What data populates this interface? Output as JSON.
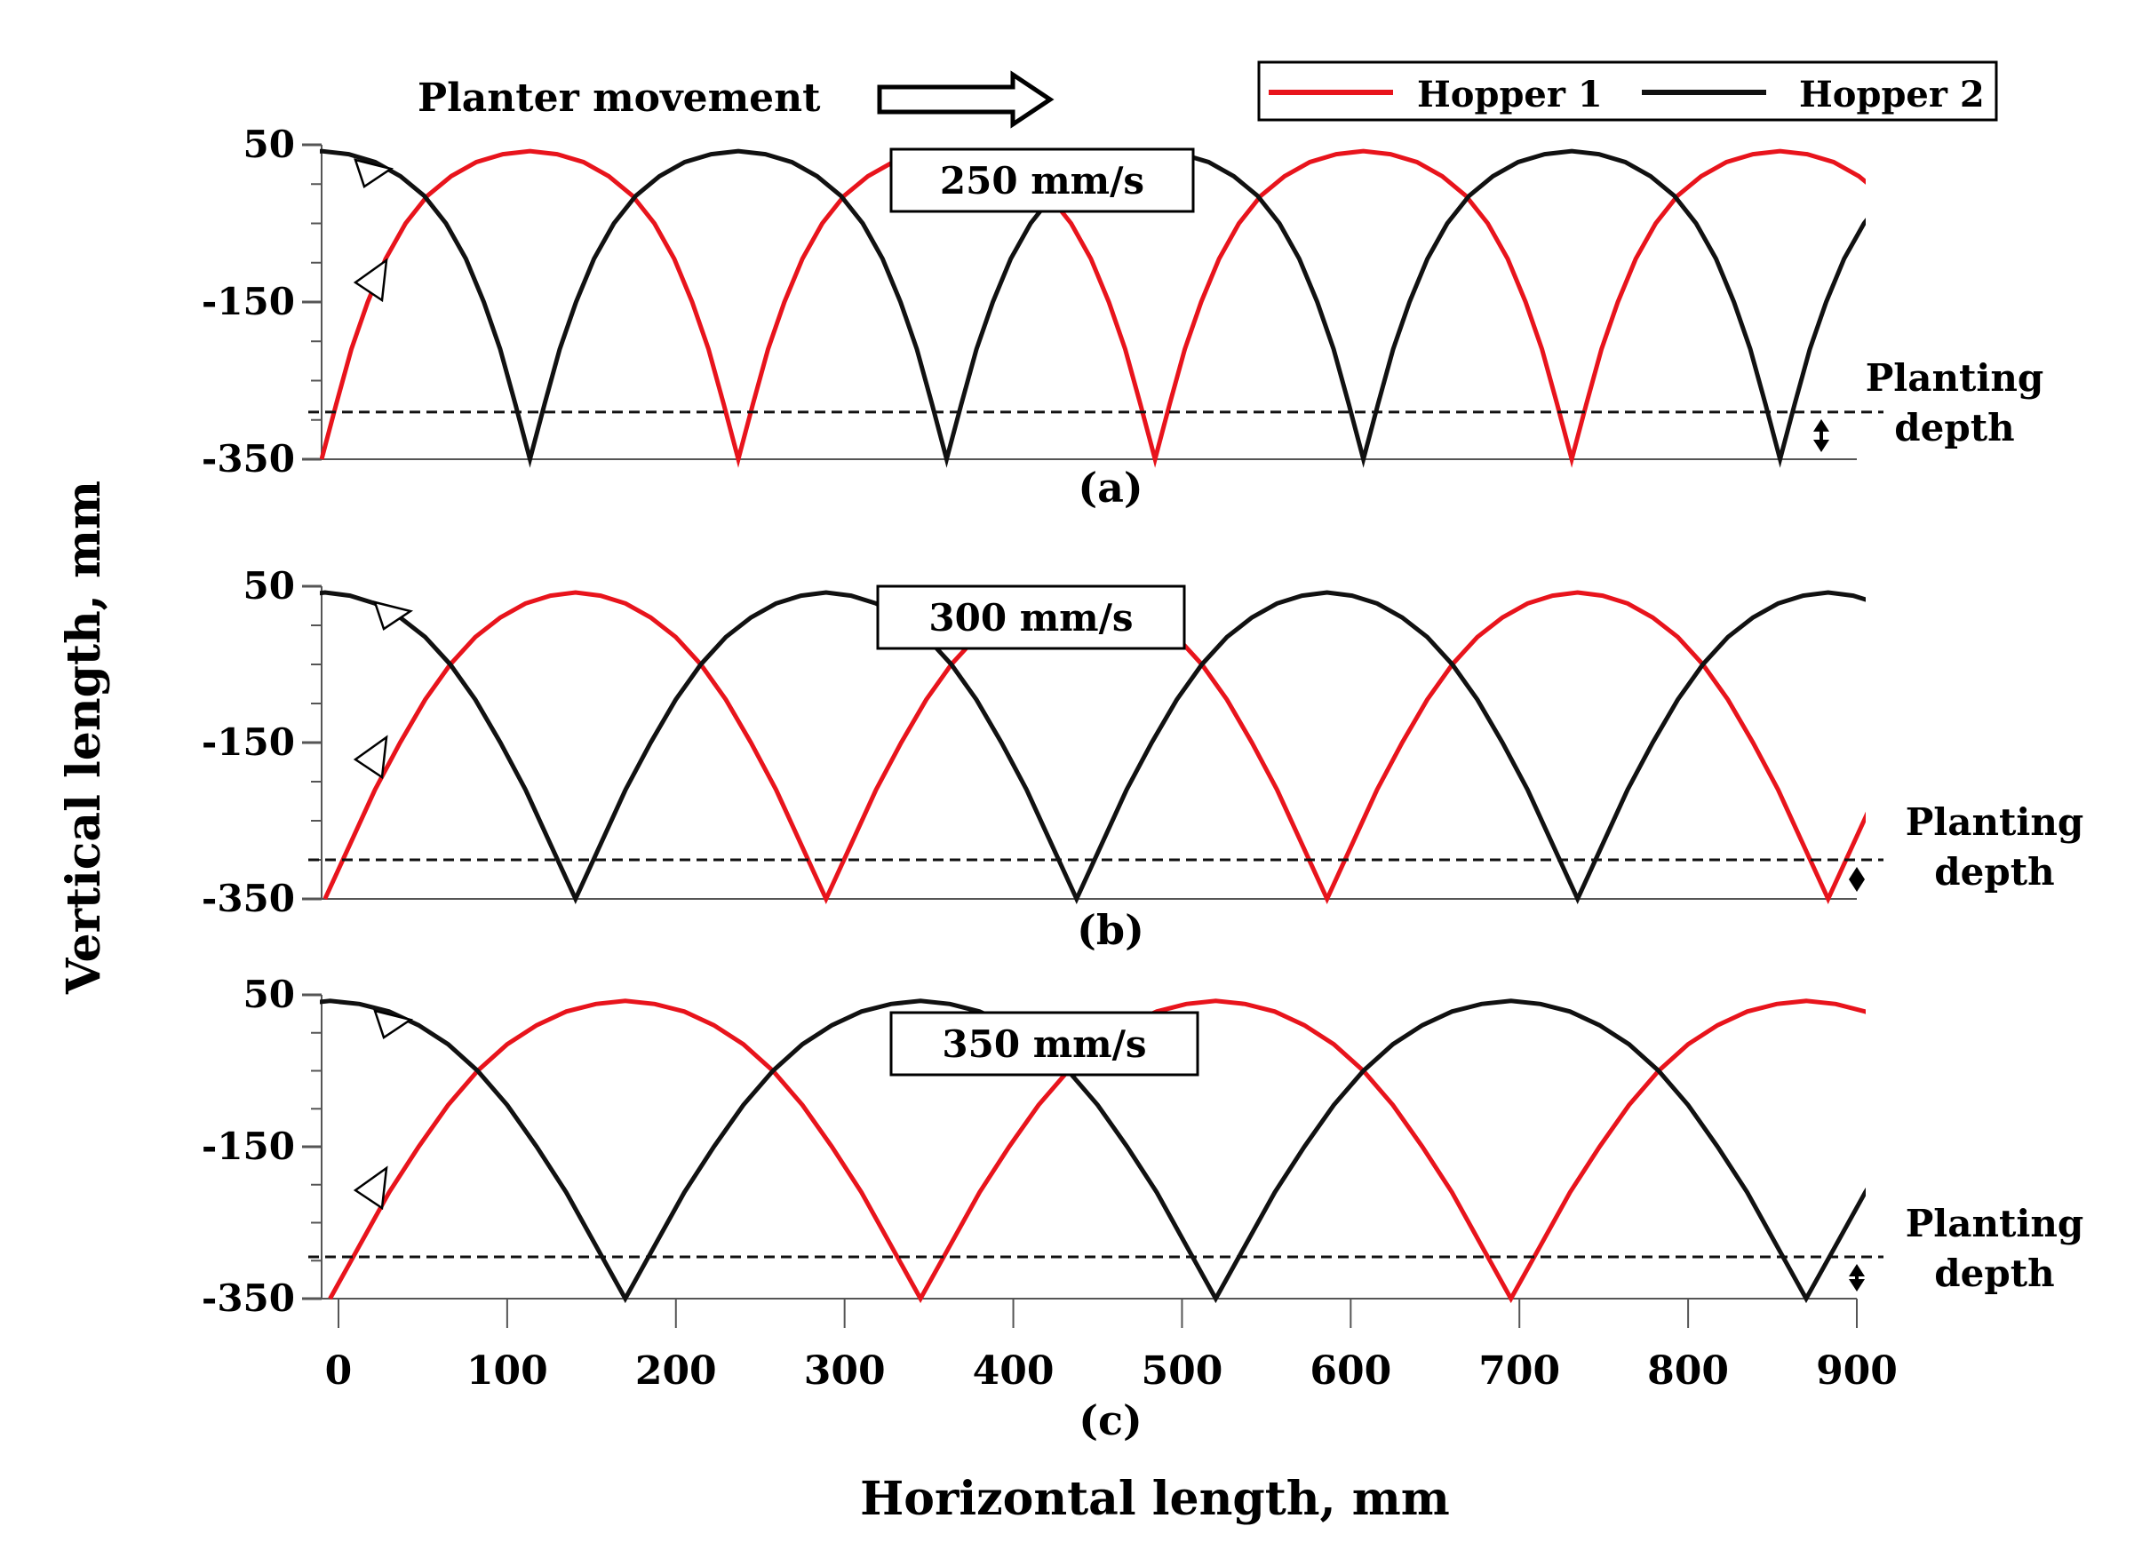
{
  "colors": {
    "hopper1": "#e8141c",
    "hopper2": "#111111",
    "axis": "#555555",
    "depth_line": "#111111"
  },
  "header": {
    "movement_label": "Planter movement",
    "movement_icon": "hollow-right-arrow"
  },
  "legend": {
    "items": [
      {
        "label": "Hopper 1",
        "color": "#e8141c"
      },
      {
        "label": "Hopper 2",
        "color": "#111111"
      }
    ]
  },
  "axes": {
    "ylabel": "Vertical length, mm",
    "xlabel": "Horizontal length, mm",
    "x_ticks": [
      "0",
      "100",
      "200",
      "300",
      "400",
      "500",
      "600",
      "700",
      "800",
      "900"
    ],
    "xlim": [
      -10,
      900
    ],
    "ylim": [
      -350,
      50
    ],
    "y_tick_labels": [
      "50",
      "-150",
      "-350"
    ]
  },
  "chart_data": [
    {
      "type": "line",
      "panel": "(a)",
      "speed_label": "250 mm/s",
      "xlim": [
        -10,
        900
      ],
      "ylim": [
        -350,
        50
      ],
      "depth_y": -290,
      "annotation": {
        "label_line1": "Planting",
        "label_line2": "depth"
      },
      "series": [
        {
          "name": "Hopper 1",
          "phase": 0.0,
          "x0": -10,
          "x1": 890,
          "arch_samples": [
            -350,
            -280,
            -210,
            -150,
            -95,
            -50,
            -15,
            10,
            28,
            38,
            42,
            38,
            28,
            10,
            -15,
            -50,
            -95,
            -150,
            -210,
            -280,
            -350
          ]
        },
        {
          "name": "Hopper 2",
          "phase": 0.5,
          "x0": -10,
          "x1": 890,
          "arch_samples": [
            -350,
            -280,
            -210,
            -150,
            -95,
            -50,
            -15,
            10,
            28,
            38,
            42,
            38,
            28,
            10,
            -15,
            -50,
            -95,
            -150,
            -210,
            -280,
            -350
          ]
        }
      ],
      "period": 247.0,
      "loop_width": 12
    },
    {
      "type": "line",
      "panel": "(b)",
      "speed_label": "300 mm/s",
      "xlim": [
        -10,
        900
      ],
      "ylim": [
        -350,
        50
      ],
      "depth_y": -300,
      "annotation": {
        "label_line1": "Planting",
        "label_line2": "depth"
      },
      "series": [
        {
          "name": "Hopper 1",
          "phase": 0.0,
          "x0": -8,
          "x1": 888,
          "arch_samples": [
            -350,
            -280,
            -210,
            -150,
            -95,
            -50,
            -15,
            10,
            28,
            38,
            42,
            38,
            28,
            10,
            -15,
            -50,
            -95,
            -150,
            -210,
            -280,
            -350
          ]
        },
        {
          "name": "Hopper 2",
          "phase": 0.5,
          "x0": -8,
          "x1": 888,
          "arch_samples": [
            -350,
            -280,
            -210,
            -150,
            -95,
            -50,
            -15,
            10,
            28,
            38,
            42,
            38,
            28,
            10,
            -15,
            -50,
            -95,
            -150,
            -210,
            -280,
            -350
          ]
        }
      ],
      "period": 297.0,
      "loop_width": 0
    },
    {
      "type": "line",
      "panel": "(c)",
      "speed_label": "350 mm/s",
      "xlim": [
        -10,
        900
      ],
      "ylim": [
        -350,
        50
      ],
      "depth_y": -295,
      "annotation": {
        "label_line1": "Planting",
        "label_line2": "depth"
      },
      "series": [
        {
          "name": "Hopper 1",
          "phase": 0.0,
          "x0": -5,
          "x1": 893,
          "arch_samples": [
            -350,
            -280,
            -210,
            -150,
            -95,
            -50,
            -15,
            10,
            28,
            38,
            42,
            38,
            28,
            10,
            -15,
            -50,
            -95,
            -150,
            -210,
            -280,
            -350
          ]
        },
        {
          "name": "Hopper 2",
          "phase": 0.5,
          "x0": -5,
          "x1": 893,
          "arch_samples": [
            -350,
            -280,
            -210,
            -150,
            -95,
            -50,
            -15,
            10,
            28,
            38,
            42,
            38,
            28,
            10,
            -15,
            -50,
            -95,
            -150,
            -210,
            -280,
            -350
          ]
        }
      ],
      "period": 350.0,
      "loop_width": 0
    }
  ]
}
